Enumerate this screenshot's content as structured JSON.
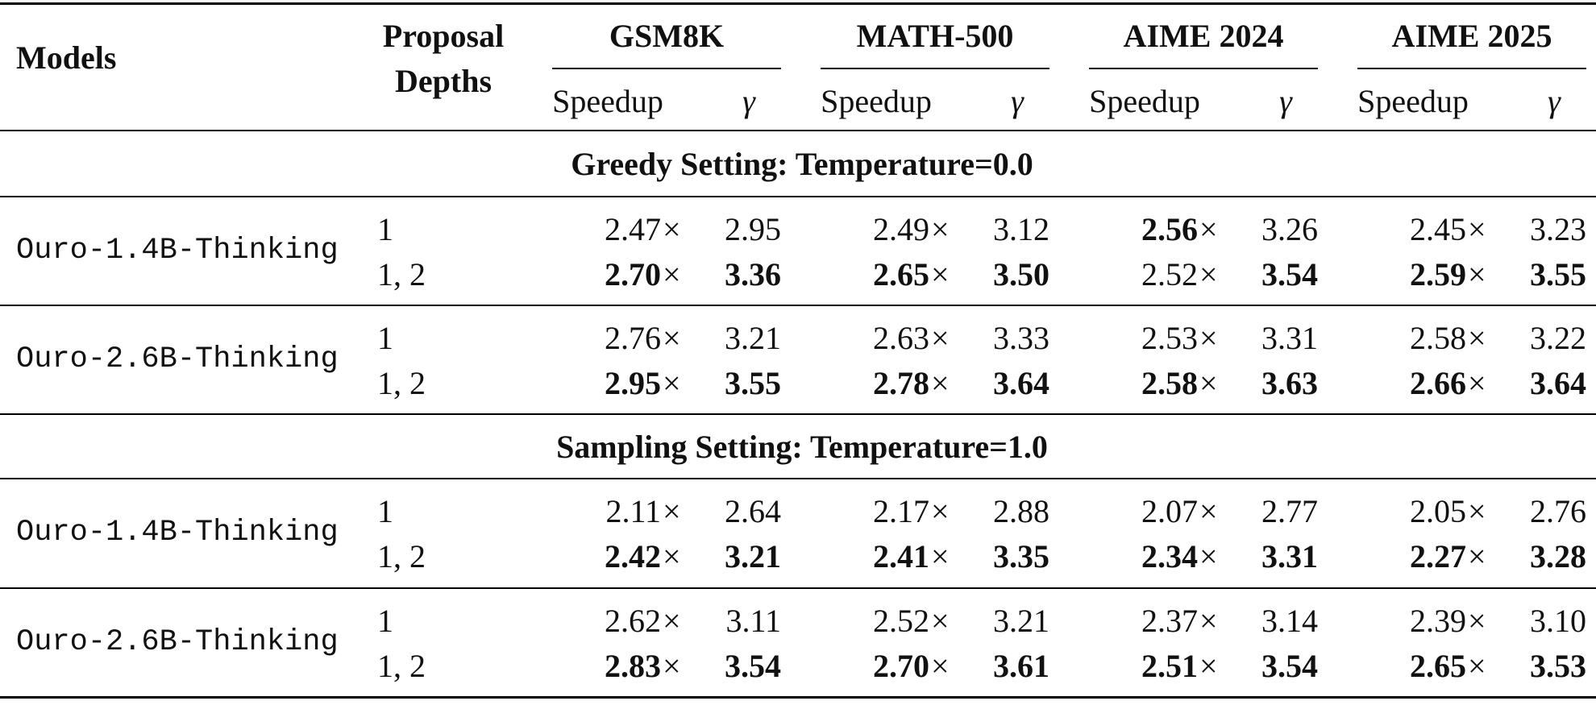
{
  "table": {
    "header": {
      "models": "Models",
      "proposal_line1": "Proposal",
      "proposal_line2": "Depths",
      "benchmarks": [
        "GSM8K",
        "MATH-500",
        "AIME 2024",
        "AIME 2025"
      ],
      "speedup_label": "Speedup",
      "gamma_label": "γ"
    },
    "sections": [
      {
        "title": "Greedy Setting: Temperature=0.0",
        "groups": [
          {
            "model": "Ouro-1.4B-Thinking",
            "rows": [
              {
                "depth": "1",
                "cells": [
                  {
                    "v": "2.47",
                    "s": "×",
                    "b": false
                  },
                  {
                    "v": "2.95",
                    "s": "",
                    "b": false
                  },
                  {
                    "v": "2.49",
                    "s": "×",
                    "b": false
                  },
                  {
                    "v": "3.12",
                    "s": "",
                    "b": false
                  },
                  {
                    "v": "2.56",
                    "s": "×",
                    "b": true
                  },
                  {
                    "v": "3.26",
                    "s": "",
                    "b": false
                  },
                  {
                    "v": "2.45",
                    "s": "×",
                    "b": false
                  },
                  {
                    "v": "3.23",
                    "s": "",
                    "b": false
                  }
                ]
              },
              {
                "depth": "1, 2",
                "cells": [
                  {
                    "v": "2.70",
                    "s": "×",
                    "b": true
                  },
                  {
                    "v": "3.36",
                    "s": "",
                    "b": true
                  },
                  {
                    "v": "2.65",
                    "s": "×",
                    "b": true
                  },
                  {
                    "v": "3.50",
                    "s": "",
                    "b": true
                  },
                  {
                    "v": "2.52",
                    "s": "×",
                    "b": false
                  },
                  {
                    "v": "3.54",
                    "s": "",
                    "b": true
                  },
                  {
                    "v": "2.59",
                    "s": "×",
                    "b": true
                  },
                  {
                    "v": "3.55",
                    "s": "",
                    "b": true
                  }
                ]
              }
            ]
          },
          {
            "model": "Ouro-2.6B-Thinking",
            "rows": [
              {
                "depth": "1",
                "cells": [
                  {
                    "v": "2.76",
                    "s": "×",
                    "b": false
                  },
                  {
                    "v": "3.21",
                    "s": "",
                    "b": false
                  },
                  {
                    "v": "2.63",
                    "s": "×",
                    "b": false
                  },
                  {
                    "v": "3.33",
                    "s": "",
                    "b": false
                  },
                  {
                    "v": "2.53",
                    "s": "×",
                    "b": false
                  },
                  {
                    "v": "3.31",
                    "s": "",
                    "b": false
                  },
                  {
                    "v": "2.58",
                    "s": "×",
                    "b": false
                  },
                  {
                    "v": "3.22",
                    "s": "",
                    "b": false
                  }
                ]
              },
              {
                "depth": "1, 2",
                "cells": [
                  {
                    "v": "2.95",
                    "s": "×",
                    "b": true
                  },
                  {
                    "v": "3.55",
                    "s": "",
                    "b": true
                  },
                  {
                    "v": "2.78",
                    "s": "×",
                    "b": true
                  },
                  {
                    "v": "3.64",
                    "s": "",
                    "b": true
                  },
                  {
                    "v": "2.58",
                    "s": "×",
                    "b": true
                  },
                  {
                    "v": "3.63",
                    "s": "",
                    "b": true
                  },
                  {
                    "v": "2.66",
                    "s": "×",
                    "b": true
                  },
                  {
                    "v": "3.64",
                    "s": "",
                    "b": true
                  }
                ]
              }
            ]
          }
        ]
      },
      {
        "title": "Sampling Setting: Temperature=1.0",
        "groups": [
          {
            "model": "Ouro-1.4B-Thinking",
            "rows": [
              {
                "depth": "1",
                "cells": [
                  {
                    "v": "2.11",
                    "s": "×",
                    "b": false
                  },
                  {
                    "v": "2.64",
                    "s": "",
                    "b": false
                  },
                  {
                    "v": "2.17",
                    "s": "×",
                    "b": false
                  },
                  {
                    "v": "2.88",
                    "s": "",
                    "b": false
                  },
                  {
                    "v": "2.07",
                    "s": "×",
                    "b": false
                  },
                  {
                    "v": "2.77",
                    "s": "",
                    "b": false
                  },
                  {
                    "v": "2.05",
                    "s": "×",
                    "b": false
                  },
                  {
                    "v": "2.76",
                    "s": "",
                    "b": false
                  }
                ]
              },
              {
                "depth": "1, 2",
                "cells": [
                  {
                    "v": "2.42",
                    "s": "×",
                    "b": true
                  },
                  {
                    "v": "3.21",
                    "s": "",
                    "b": true
                  },
                  {
                    "v": "2.41",
                    "s": "×",
                    "b": true
                  },
                  {
                    "v": "3.35",
                    "s": "",
                    "b": true
                  },
                  {
                    "v": "2.34",
                    "s": "×",
                    "b": true
                  },
                  {
                    "v": "3.31",
                    "s": "",
                    "b": true
                  },
                  {
                    "v": "2.27",
                    "s": "×",
                    "b": true
                  },
                  {
                    "v": "3.28",
                    "s": "",
                    "b": true
                  }
                ]
              }
            ]
          },
          {
            "model": "Ouro-2.6B-Thinking",
            "rows": [
              {
                "depth": "1",
                "cells": [
                  {
                    "v": "2.62",
                    "s": "×",
                    "b": false
                  },
                  {
                    "v": "3.11",
                    "s": "",
                    "b": false
                  },
                  {
                    "v": "2.52",
                    "s": "×",
                    "b": false
                  },
                  {
                    "v": "3.21",
                    "s": "",
                    "b": false
                  },
                  {
                    "v": "2.37",
                    "s": "×",
                    "b": false
                  },
                  {
                    "v": "3.14",
                    "s": "",
                    "b": false
                  },
                  {
                    "v": "2.39",
                    "s": "×",
                    "b": false
                  },
                  {
                    "v": "3.10",
                    "s": "",
                    "b": false
                  }
                ]
              },
              {
                "depth": "1, 2",
                "cells": [
                  {
                    "v": "2.83",
                    "s": "×",
                    "b": true
                  },
                  {
                    "v": "3.54",
                    "s": "",
                    "b": true
                  },
                  {
                    "v": "2.70",
                    "s": "×",
                    "b": true
                  },
                  {
                    "v": "3.61",
                    "s": "",
                    "b": true
                  },
                  {
                    "v": "2.51",
                    "s": "×",
                    "b": true
                  },
                  {
                    "v": "3.54",
                    "s": "",
                    "b": true
                  },
                  {
                    "v": "2.65",
                    "s": "×",
                    "b": true
                  },
                  {
                    "v": "3.53",
                    "s": "",
                    "b": true
                  }
                ]
              }
            ]
          }
        ]
      }
    ]
  }
}
